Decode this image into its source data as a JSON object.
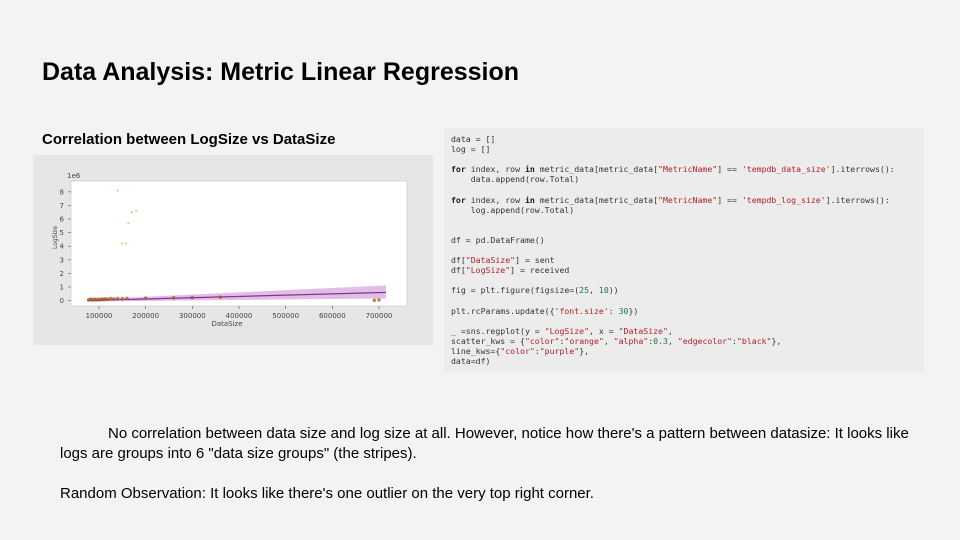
{
  "slide": {
    "title": "Data Analysis: Metric Linear Regression",
    "chart_heading": "Correlation between LogSize vs DataSize",
    "paragraph1": "No correlation between data size and log size at all. However, notice how there's a pattern between datasize: It looks like logs are groups into 6 \"data size groups\" (the stripes).",
    "paragraph2": "Random Observation: It looks like there's one outlier on the very top right corner."
  },
  "chart_data": {
    "type": "scatter",
    "xlabel": "DataSize",
    "ylabel": "LogSize",
    "y_multiplier_label": "1e6",
    "xlim": [
      40000,
      760000
    ],
    "ylim": [
      -0.4,
      8.8
    ],
    "x_ticks": [
      100000,
      200000,
      300000,
      400000,
      500000,
      600000,
      700000
    ],
    "x_tick_labels": [
      "100000",
      "200000",
      "300000",
      "400000",
      "500000",
      "600000",
      "700000"
    ],
    "y_ticks": [
      0,
      1,
      2,
      3,
      4,
      5,
      6,
      7,
      8
    ],
    "y_tick_labels": [
      "0",
      "1",
      "2",
      "3",
      "4",
      "5",
      "6",
      "7",
      "8"
    ],
    "grid": false,
    "series": [
      {
        "points": [
          [
            140000,
            8.1
          ],
          [
            170000,
            6.5
          ],
          [
            180000,
            6.6
          ],
          [
            163000,
            5.7
          ],
          [
            150000,
            4.2
          ],
          [
            158000,
            4.2
          ],
          [
            78000,
            0.05
          ],
          [
            82000,
            0.1
          ],
          [
            86000,
            0.05
          ],
          [
            90000,
            0.1
          ],
          [
            94000,
            0.05
          ],
          [
            98000,
            0.1
          ],
          [
            102000,
            0.05
          ],
          [
            106000,
            0.12
          ],
          [
            110000,
            0.08
          ],
          [
            114000,
            0.12
          ],
          [
            118000,
            0.1
          ],
          [
            125000,
            0.15
          ],
          [
            132000,
            0.12
          ],
          [
            140000,
            0.15
          ],
          [
            150000,
            0.14
          ],
          [
            160000,
            0.16
          ],
          [
            200000,
            0.18
          ],
          [
            260000,
            0.2
          ],
          [
            300000,
            0.22
          ],
          [
            360000,
            0.25
          ],
          [
            690000,
            0.02
          ],
          [
            700000,
            0.05
          ]
        ],
        "color": "orange"
      }
    ],
    "regression": {
      "x": [
        75000,
        715000
      ],
      "y": [
        0.0,
        0.6
      ],
      "color": "purple"
    }
  },
  "code": {
    "lines": [
      [
        [
          "t",
          "data = []"
        ]
      ],
      [
        [
          "t",
          "log = []"
        ]
      ],
      [],
      [
        [
          "k",
          "for"
        ],
        [
          "t",
          " index, row "
        ],
        [
          "k",
          "in"
        ],
        [
          "t",
          " metric_data[metric_data["
        ],
        [
          "s",
          "\"MetricName\""
        ],
        [
          "t",
          "] == "
        ],
        [
          "s",
          "'tempdb_data_size'"
        ],
        [
          "t",
          "].iterrows():"
        ]
      ],
      [
        [
          "t",
          "    data.append(row.Total)"
        ]
      ],
      [],
      [
        [
          "k",
          "for"
        ],
        [
          "t",
          " index, row "
        ],
        [
          "k",
          "in"
        ],
        [
          "t",
          " metric_data[metric_data["
        ],
        [
          "s",
          "\"MetricName\""
        ],
        [
          "t",
          "] == "
        ],
        [
          "s",
          "'tempdb_log_size'"
        ],
        [
          "t",
          "].iterrows():"
        ]
      ],
      [
        [
          "t",
          "    log.append(row.Total)"
        ]
      ],
      [],
      [],
      [
        [
          "t",
          "df = pd.DataFrame()"
        ]
      ],
      [],
      [
        [
          "t",
          "df["
        ],
        [
          "s",
          "\"DataSize\""
        ],
        [
          "t",
          "] = sent"
        ]
      ],
      [
        [
          "t",
          "df["
        ],
        [
          "s",
          "\"LogSize\""
        ],
        [
          "t",
          "] = received"
        ]
      ],
      [],
      [
        [
          "t",
          "fig = plt.figure(figsize=("
        ],
        [
          "n",
          "25"
        ],
        [
          "t",
          ", "
        ],
        [
          "n",
          "10"
        ],
        [
          "t",
          "))"
        ]
      ],
      [],
      [
        [
          "t",
          "plt.rcParams.update({"
        ],
        [
          "s",
          "'font.size'"
        ],
        [
          "t",
          ": "
        ],
        [
          "n",
          "30"
        ],
        [
          "t",
          "})"
        ]
      ],
      [],
      [
        [
          "t",
          "_ =sns.regplot(y = "
        ],
        [
          "s",
          "\"LogSize\""
        ],
        [
          "t",
          ", x = "
        ],
        [
          "s",
          "\"DataSize\""
        ],
        [
          "t",
          ","
        ]
      ],
      [
        [
          "t",
          "scatter_kws = {"
        ],
        [
          "s",
          "\"color\""
        ],
        [
          "t",
          ":"
        ],
        [
          "s",
          "\"orange\""
        ],
        [
          "t",
          ", "
        ],
        [
          "s",
          "\"alpha\""
        ],
        [
          "t",
          ":"
        ],
        [
          "n",
          "0.3"
        ],
        [
          "t",
          ", "
        ],
        [
          "s",
          "\"edgecolor\""
        ],
        [
          "t",
          ":"
        ],
        [
          "s",
          "\"black\""
        ],
        [
          "t",
          "},"
        ]
      ],
      [
        [
          "t",
          "line_kws={"
        ],
        [
          "s",
          "\"color\""
        ],
        [
          "t",
          ":"
        ],
        [
          "s",
          "\"purple\""
        ],
        [
          "t",
          "},"
        ]
      ],
      [
        [
          "t",
          "data=df)"
        ]
      ]
    ]
  }
}
